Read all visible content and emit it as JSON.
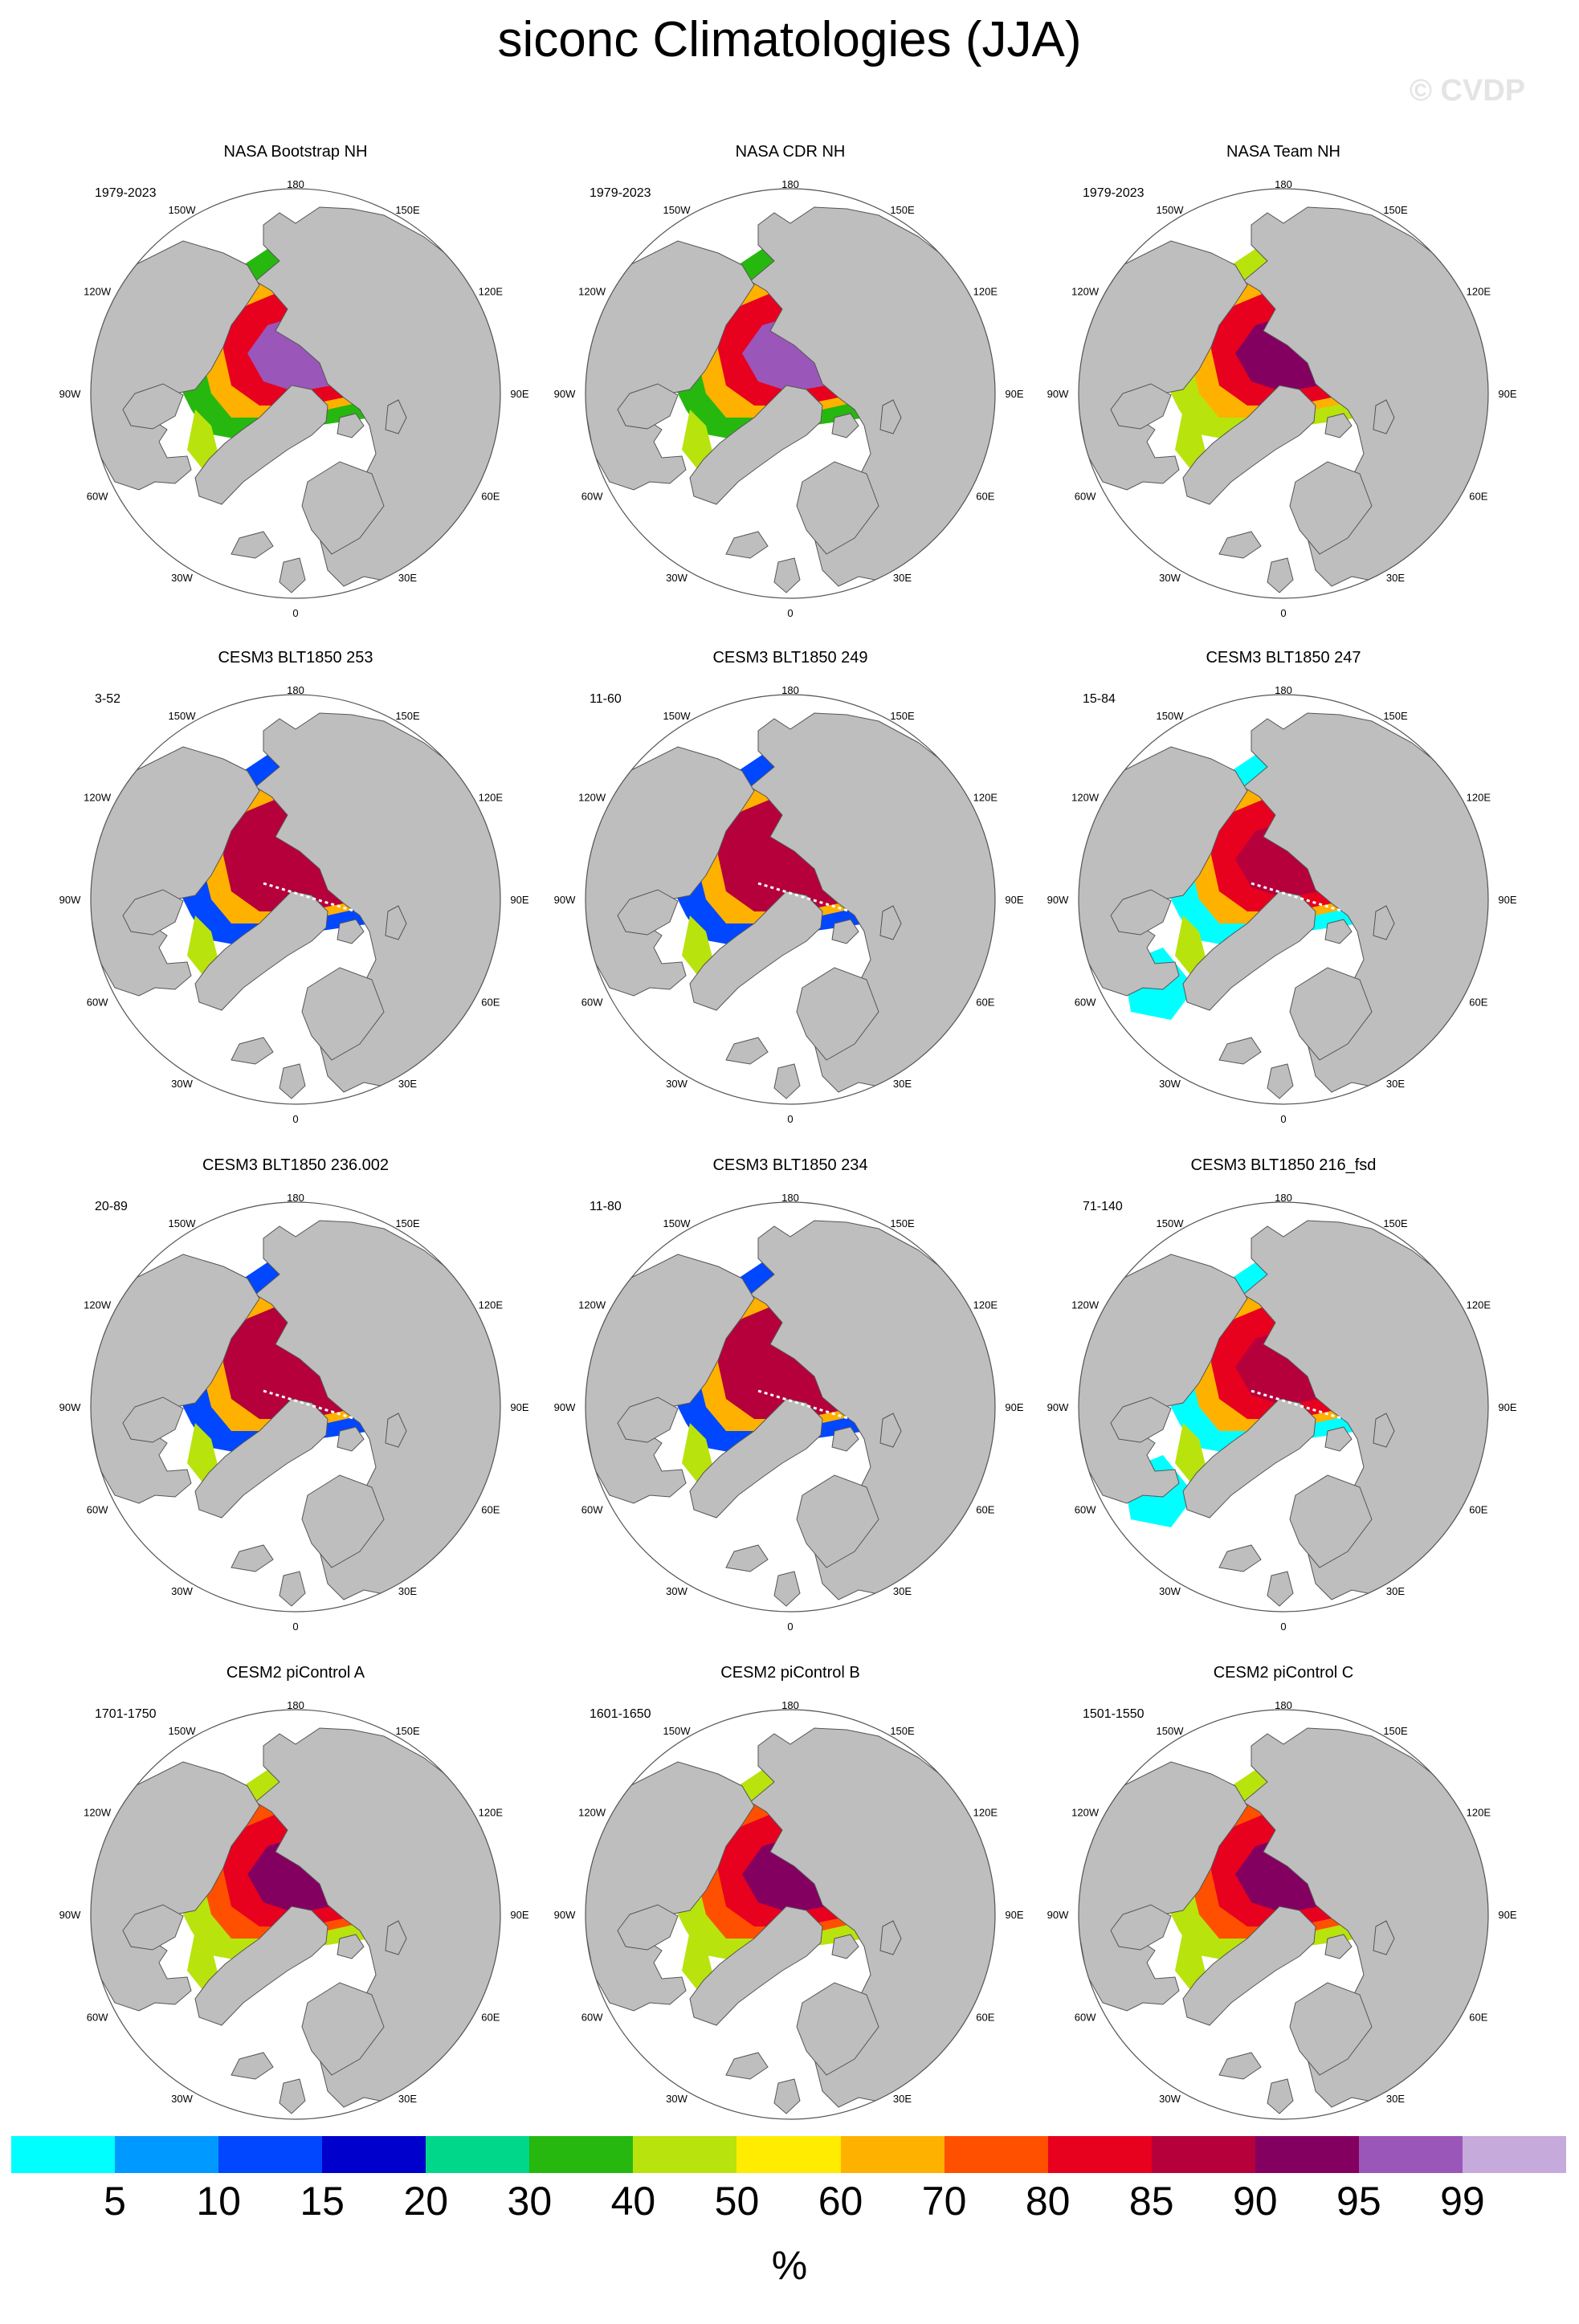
{
  "figure": {
    "title": "siconc Climatologies (JJA)",
    "watermark": "© CVDP",
    "units": "%"
  },
  "longitude_labels": [
    "180",
    "150E",
    "120E",
    "90E",
    "60E",
    "30E",
    "0",
    "30W",
    "60W",
    "90W",
    "120W",
    "150W"
  ],
  "panels": [
    {
      "title": "NASA Bootstrap NH",
      "years": "1979-2023",
      "style": "obs-bootstrap"
    },
    {
      "title": "NASA CDR NH",
      "years": "1979-2023",
      "style": "obs-bootstrap"
    },
    {
      "title": "NASA Team NH",
      "years": "1979-2023",
      "style": "obs-team"
    },
    {
      "title": "CESM3 BLT1850 253",
      "years": "3-52",
      "style": "model-red"
    },
    {
      "title": "CESM3 BLT1850 249",
      "years": "11-60",
      "style": "model-red"
    },
    {
      "title": "CESM3 BLT1850 247",
      "years": "15-84",
      "style": "model-red-wide"
    },
    {
      "title": "CESM3 BLT1850 236.002",
      "years": "20-89",
      "style": "model-red"
    },
    {
      "title": "CESM3 BLT1850 234",
      "years": "11-80",
      "style": "model-red"
    },
    {
      "title": "CESM3 BLT1850 216_fsd",
      "years": "71-140",
      "style": "model-red-wide"
    },
    {
      "title": "CESM2 piControl A",
      "years": "1701-1750",
      "style": "model-cesm2"
    },
    {
      "title": "CESM2 piControl B",
      "years": "1601-1650",
      "style": "model-cesm2"
    },
    {
      "title": "CESM2 piControl C",
      "years": "1501-1550",
      "style": "model-cesm2"
    }
  ],
  "colorbar": {
    "colors": [
      "#00ffff",
      "#0099ff",
      "#0047ff",
      "#0000cc",
      "#00d78a",
      "#26b80f",
      "#b9e30d",
      "#ffec00",
      "#ffb100",
      "#ff5000",
      "#e8001f",
      "#b5003b",
      "#840060",
      "#9a56b8",
      "#c7aadc"
    ],
    "labels": [
      "5",
      "10",
      "15",
      "20",
      "30",
      "40",
      "50",
      "60",
      "70",
      "80",
      "85",
      "90",
      "95",
      "99"
    ]
  }
}
